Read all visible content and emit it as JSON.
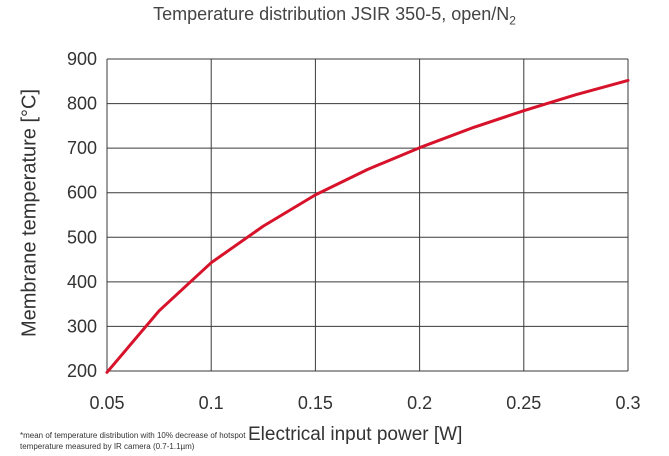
{
  "chart_data": {
    "type": "line",
    "title": "Temperature distribution JSIR 350-5, open/N",
    "title_subscript": "2",
    "xlabel": "Electrical input power [W]",
    "ylabel": "Membrane temperature [°C]",
    "xlim": [
      0.05,
      0.3
    ],
    "ylim": [
      200,
      900
    ],
    "x_ticks": [
      "0.05",
      "0.1",
      "0.15",
      "0.2",
      "0.25",
      "0.3"
    ],
    "y_ticks": [
      "200",
      "300",
      "400",
      "500",
      "600",
      "700",
      "800",
      "900"
    ],
    "grid": true,
    "series": [
      {
        "color": "#d7132b",
        "x": [
          0.05,
          0.075,
          0.1,
          0.125,
          0.15,
          0.175,
          0.2,
          0.225,
          0.25,
          0.275,
          0.3
        ],
        "y": [
          197,
          335,
          443,
          525,
          595,
          652,
          701,
          745,
          784,
          820,
          852
        ]
      }
    ],
    "footnote": "*mean of temperature distribution with 10% decrease of hotspot temperature measured by IR camera (0.7-1.1µm)"
  }
}
